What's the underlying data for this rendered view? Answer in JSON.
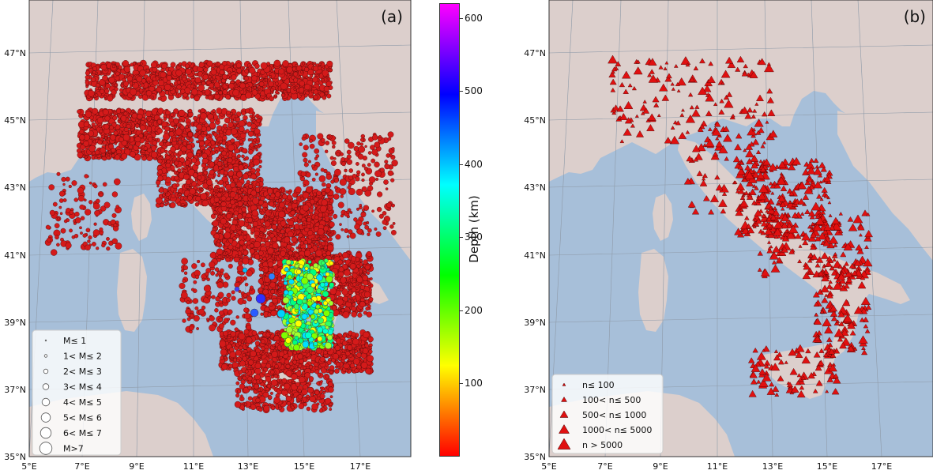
{
  "panels": [
    {
      "label": "(a)",
      "lat_labels": [
        "47°N",
        "45°N",
        "43°N",
        "41°N",
        "39°N",
        "37°N",
        "35°N"
      ],
      "lon_labels": [
        "5°E",
        "7°E",
        "9°E",
        "11°E",
        "13°E",
        "15°E",
        "17°E"
      ],
      "legend": [
        "M≤ 1",
        "1< M≤ 2",
        "2< M≤ 3",
        "3< M≤ 4",
        "4< M≤ 5",
        "5< M≤ 6",
        "6< M≤ 7",
        "M>7"
      ]
    },
    {
      "label": "(b)",
      "lat_labels": [
        "47°N",
        "45°N",
        "43°N",
        "41°N",
        "39°N",
        "37°N",
        "35°N"
      ],
      "lon_labels": [
        "5°E",
        "7°E",
        "9°E",
        "11°E",
        "13°E",
        "15°E",
        "17°E"
      ],
      "legend": [
        "n≤ 100",
        "100< n≤ 500",
        "500< n≤ 1000",
        "1000< n≤ 5000",
        "n > 5000"
      ]
    }
  ],
  "colorbar": {
    "label": "Depth (km)",
    "ticks": [
      "100",
      "200",
      "300",
      "400",
      "500",
      "600"
    ],
    "range": [
      0,
      620
    ],
    "colors": [
      "#ff0000",
      "#ff7f00",
      "#ffff00",
      "#00ff00",
      "#00ffff",
      "#0000ff",
      "#ff00ff"
    ]
  },
  "map_colors": {
    "sea": "#a7bfd9",
    "land": "#dccfcc",
    "event": "#d41a1a",
    "grid": "#8e9aa8"
  }
}
